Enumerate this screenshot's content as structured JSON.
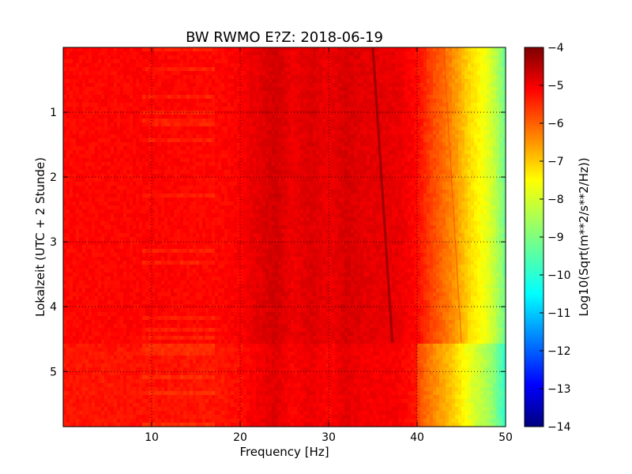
{
  "chart_data": {
    "type": "heatmap",
    "title": "BW RWMO E?Z: 2018-06-19",
    "xlabel": "Frequency [Hz]",
    "ylabel": "Lokalzeit (UTC + 2 Stunde)",
    "xlim": [
      0,
      50
    ],
    "ylim": [
      5.85,
      0.0
    ],
    "x_ticks": [
      10,
      20,
      30,
      40,
      50
    ],
    "y_ticks": [
      1,
      2,
      3,
      4,
      5
    ],
    "grid": true,
    "colormap": "jet",
    "colorbar": {
      "label": "Log10(Sqrt(m**2/s**2/Hz))",
      "range": [
        -14,
        -4
      ],
      "ticks": [
        -4,
        -5,
        -6,
        -7,
        -8,
        -9,
        -10,
        -11,
        -12,
        -13,
        -14
      ]
    },
    "data_gap_end_hours": 4.55,
    "features": [
      {
        "name": "dominant tonal line",
        "start_hz": 35.0,
        "start_h": 0.0,
        "end_hz": 37.2,
        "end_h": 4.55,
        "level": -4.3
      },
      {
        "name": "faint tonal line",
        "start_hz": 43.0,
        "start_h": 0.0,
        "end_hz": 45.0,
        "end_h": 4.55,
        "level": -5.8
      }
    ],
    "spectrum_profile": {
      "freq_hz": [
        0,
        5,
        10,
        15,
        18,
        20,
        22,
        24,
        26,
        28,
        30,
        32,
        34,
        36,
        38,
        40,
        41,
        42,
        43,
        44,
        45,
        46,
        47,
        48,
        49,
        50
      ],
      "level_log10": [
        -5.3,
        -5.3,
        -5.25,
        -5.3,
        -5.3,
        -5.2,
        -5.0,
        -4.8,
        -5.1,
        -4.9,
        -5.1,
        -4.85,
        -5.0,
        -5.0,
        -5.05,
        -5.3,
        -5.7,
        -6.0,
        -6.3,
        -6.6,
        -7.0,
        -7.4,
        -7.7,
        -8.0,
        -8.5,
        -9.2
      ]
    }
  }
}
